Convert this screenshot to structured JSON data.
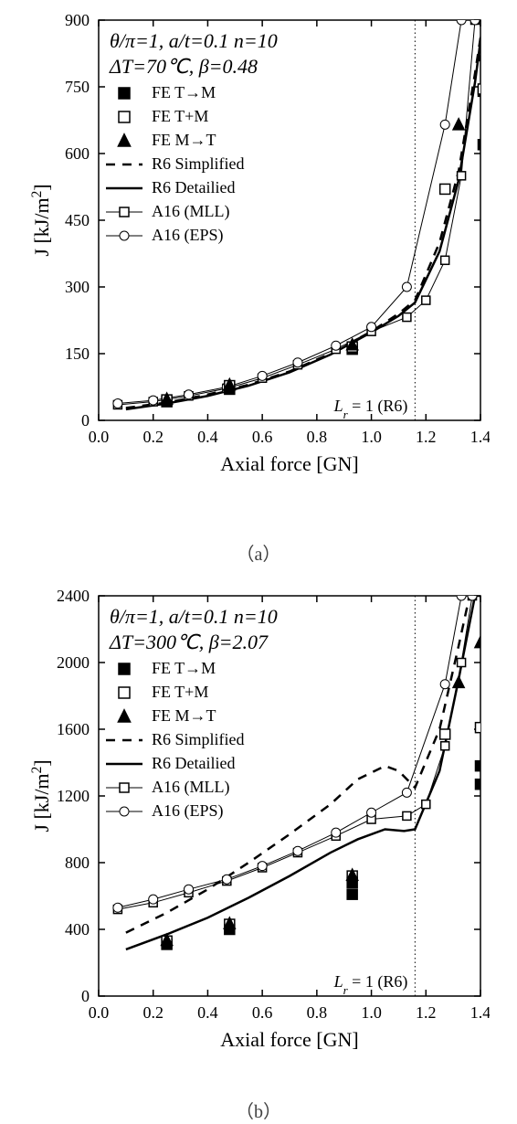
{
  "global": {
    "xlabel": "Axial force [GN]",
    "ylabel": "J [kJ/m²]",
    "xlim": [
      0.0,
      1.4
    ],
    "xtick_step": 0.2,
    "vline_x": 1.16,
    "vline_label": "Lᵣ = 1 (R6)",
    "colors": {
      "axis": "#000000",
      "background": "#ffffff",
      "marker_fill_black": "#000000",
      "marker_fill_white": "#ffffff"
    },
    "legend_items": [
      {
        "key": "fe_tm",
        "label": "FE T→M",
        "type": "marker",
        "shape": "square",
        "fill": "#000000"
      },
      {
        "key": "fe_tpm",
        "label": "FE T+M",
        "type": "marker",
        "shape": "square",
        "fill": "#ffffff"
      },
      {
        "key": "fe_mt",
        "label": "FE M→T",
        "type": "marker",
        "shape": "triangle",
        "fill": "#000000"
      },
      {
        "key": "r6s",
        "label": "R6 Simplified",
        "type": "line",
        "style": "dashed"
      },
      {
        "key": "r6d",
        "label": "R6 Detailied",
        "type": "line",
        "style": "solid"
      },
      {
        "key": "a16m",
        "label": "A16 (MLL)",
        "type": "line-marker",
        "shape": "square"
      },
      {
        "key": "a16e",
        "label": "A16 (EPS)",
        "type": "line-marker",
        "shape": "circle"
      }
    ]
  },
  "panels": {
    "a": {
      "caption": "（a）",
      "params_line1": "θ/π=1, a/t=0.1 n=10",
      "params_line2": "ΔT=70℃, β=0.48",
      "ylim": [
        0,
        900
      ],
      "ytick_step": 150,
      "series": {
        "fe_tm": {
          "x": [
            0.25,
            0.48,
            0.93,
            1.41,
            1.41
          ],
          "y": [
            42,
            70,
            160,
            620,
            740
          ]
        },
        "fe_tpm": {
          "x": [
            0.25,
            0.48,
            0.93,
            1.27,
            1.41
          ],
          "y": [
            46,
            78,
            165,
            520,
            745
          ]
        },
        "fe_mt": {
          "x": [
            0.25,
            0.48,
            0.93,
            1.32,
            1.41
          ],
          "y": [
            48,
            80,
            170,
            665,
            820
          ]
        },
        "r6s": {
          "x": [
            0.1,
            0.25,
            0.4,
            0.55,
            0.7,
            0.85,
            1.0,
            1.1,
            1.16,
            1.25,
            1.32,
            1.38,
            1.41
          ],
          "y": [
            28,
            40,
            58,
            80,
            110,
            150,
            200,
            240,
            270,
            400,
            560,
            780,
            900
          ]
        },
        "r6d": {
          "x": [
            0.1,
            0.25,
            0.4,
            0.55,
            0.7,
            0.85,
            1.0,
            1.1,
            1.16,
            1.25,
            1.32,
            1.38,
            1.41
          ],
          "y": [
            25,
            38,
            55,
            78,
            108,
            148,
            198,
            235,
            265,
            380,
            540,
            760,
            900
          ]
        },
        "a16m": {
          "x": [
            0.07,
            0.2,
            0.33,
            0.47,
            0.6,
            0.73,
            0.87,
            1.0,
            1.13,
            1.2,
            1.27,
            1.33,
            1.38
          ],
          "y": [
            35,
            42,
            55,
            72,
            95,
            125,
            160,
            200,
            232,
            270,
            360,
            550,
            900
          ]
        },
        "a16e": {
          "x": [
            0.07,
            0.2,
            0.33,
            0.47,
            0.6,
            0.73,
            0.87,
            1.0,
            1.13,
            1.27,
            1.33,
            1.38
          ],
          "y": [
            38,
            45,
            58,
            75,
            100,
            130,
            168,
            210,
            300,
            665,
            900,
            900
          ]
        }
      }
    },
    "b": {
      "caption": "（b）",
      "params_line1": "θ/π=1, a/t=0.1 n=10",
      "params_line2": "ΔT=300℃, β=2.07",
      "ylim": [
        0,
        2400
      ],
      "ytick_step": 400,
      "series": {
        "fe_tm": {
          "x": [
            0.25,
            0.48,
            0.93,
            0.93,
            1.4,
            1.4
          ],
          "y": [
            310,
            400,
            610,
            680,
            1270,
            1380
          ]
        },
        "fe_tpm": {
          "x": [
            0.25,
            0.48,
            0.93,
            1.27,
            1.4
          ],
          "y": [
            330,
            430,
            720,
            1570,
            1610
          ]
        },
        "fe_mt": {
          "x": [
            0.25,
            0.48,
            0.93,
            1.32,
            1.4
          ],
          "y": [
            335,
            435,
            725,
            1880,
            2120
          ]
        },
        "r6s": {
          "x": [
            0.1,
            0.25,
            0.4,
            0.55,
            0.7,
            0.85,
            0.95,
            1.05,
            1.1,
            1.16,
            1.25,
            1.32,
            1.36
          ],
          "y": [
            380,
            500,
            640,
            800,
            970,
            1150,
            1300,
            1380,
            1350,
            1250,
            1600,
            2100,
            2400
          ]
        },
        "r6d": {
          "x": [
            0.1,
            0.25,
            0.4,
            0.55,
            0.7,
            0.85,
            0.95,
            1.05,
            1.12,
            1.16,
            1.25,
            1.32,
            1.38,
            1.41
          ],
          "y": [
            280,
            370,
            470,
            590,
            720,
            860,
            940,
            1000,
            990,
            1000,
            1350,
            1900,
            2400,
            2400
          ]
        },
        "a16m": {
          "x": [
            0.07,
            0.2,
            0.33,
            0.47,
            0.6,
            0.73,
            0.87,
            1.0,
            1.13,
            1.2,
            1.27,
            1.33,
            1.37
          ],
          "y": [
            520,
            560,
            620,
            690,
            770,
            860,
            960,
            1060,
            1080,
            1150,
            1500,
            2000,
            2400
          ]
        },
        "a16e": {
          "x": [
            0.07,
            0.2,
            0.33,
            0.47,
            0.6,
            0.73,
            0.87,
            1.0,
            1.13,
            1.27,
            1.33,
            1.37
          ],
          "y": [
            530,
            580,
            640,
            700,
            780,
            870,
            980,
            1100,
            1220,
            1870,
            2400,
            2400
          ]
        }
      }
    }
  },
  "typography": {
    "params_fontsize": 22,
    "legend_fontsize": 18,
    "axis_label_fontsize": 22,
    "tick_fontsize": 18
  }
}
